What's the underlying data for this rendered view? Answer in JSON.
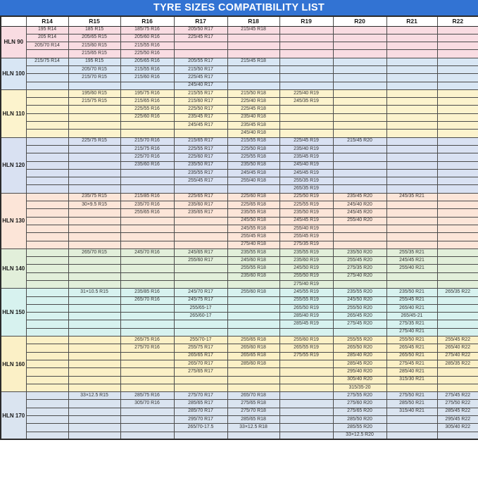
{
  "title": "TYRE SIZES COMPATIBILITY LIST",
  "colors": {
    "title_bg": "#3273d3",
    "title_text": "#ffffff",
    "header_bg": "#ffffff",
    "border": "#4a4a4a",
    "text": "#333333"
  },
  "columns": [
    "R14",
    "R15",
    "R16",
    "R17",
    "R18",
    "R19",
    "R20",
    "R21",
    "R22"
  ],
  "groups": [
    {
      "label": "HLN 90",
      "color": "#f9dce2",
      "rows": [
        [
          "195 R14",
          "185 R15",
          "185/75 R16",
          "205/50 R17",
          "215/45 R18",
          "",
          "",
          "",
          ""
        ],
        [
          "205 R14",
          "205/65 R15",
          "205/60 R16",
          "225/45 R17",
          "",
          "",
          "",
          "",
          ""
        ],
        [
          "205/70 R14",
          "215/60 R15",
          "215/55 R16",
          "",
          "",
          "",
          "",
          "",
          ""
        ],
        [
          "",
          "215/65 R15",
          "225/50 R16",
          "",
          "",
          "",
          "",
          "",
          ""
        ]
      ]
    },
    {
      "label": "HLN 100",
      "color": "#d8e6f4",
      "rows": [
        [
          "215/75 R14",
          "195 R15",
          "205/65 R16",
          "205/55 R17",
          "215/45 R18",
          "",
          "",
          "",
          ""
        ],
        [
          "",
          "205/70 R15",
          "215/55 R16",
          "215/50 R17",
          "",
          "",
          "",
          "",
          ""
        ],
        [
          "",
          "215/70 R15",
          "215/60 R16",
          "225/45 R17",
          "",
          "",
          "",
          "",
          ""
        ],
        [
          "",
          "",
          "",
          "245/40 R17",
          "",
          "",
          "",
          "",
          ""
        ]
      ]
    },
    {
      "label": "HLN 110",
      "color": "#fcf3cd",
      "rows": [
        [
          "",
          "195/60 R15",
          "195/75 R16",
          "215/55 R17",
          "215/50 R18",
          "225/40 R19",
          "",
          "",
          ""
        ],
        [
          "",
          "215/75 R15",
          "215/65 R16",
          "215/60 R17",
          "225/40 R18",
          "245/35 R19",
          "",
          "",
          ""
        ],
        [
          "",
          "",
          "225/55 R16",
          "225/50 R17",
          "225/45 R18",
          "",
          "",
          "",
          ""
        ],
        [
          "",
          "",
          "225/60 R16",
          "235/45 R17",
          "235/40 R18",
          "",
          "",
          "",
          ""
        ],
        [
          "",
          "",
          "",
          "245/45 R17",
          "235/45 R18",
          "",
          "",
          "",
          ""
        ],
        [
          "",
          "",
          "",
          "",
          "245/40 R18",
          "",
          "",
          "",
          ""
        ]
      ]
    },
    {
      "label": "HLN 120",
      "color": "#d9e1f2",
      "rows": [
        [
          "",
          "225/75 R15",
          "215/70 R16",
          "215/65 R17",
          "215/55 R18",
          "225/45 R19",
          "215/45 R20",
          "",
          ""
        ],
        [
          "",
          "",
          "215/75 R16",
          "225/55 R17",
          "225/50 R18",
          "235/40 R19",
          "",
          "",
          ""
        ],
        [
          "",
          "",
          "225/70 R16",
          "225/60 R17",
          "225/55 R18",
          "235/45 R19",
          "",
          "",
          ""
        ],
        [
          "",
          "",
          "235/60 R16",
          "235/50 R17",
          "235/50 R18",
          "245/40 R19",
          "",
          "",
          ""
        ],
        [
          "",
          "",
          "",
          "235/55 R17",
          "245/45 R18",
          "245/45 R19",
          "",
          "",
          ""
        ],
        [
          "",
          "",
          "",
          "255/45 R17",
          "255/40 R18",
          "255/35 R19",
          "",
          "",
          ""
        ],
        [
          "",
          "",
          "",
          "",
          "",
          "265/35 R19",
          "",
          "",
          ""
        ]
      ]
    },
    {
      "label": "HLN 130",
      "color": "#fce5d8",
      "rows": [
        [
          "",
          "235/75 R15",
          "215/85 R16",
          "225/65 R17",
          "225/60 R18",
          "225/50 R19",
          "235/45 R20",
          "245/35 R21",
          ""
        ],
        [
          "",
          "30×9.5 R15",
          "235/70 R16",
          "235/60 R17",
          "225/65 R18",
          "225/55 R19",
          "245/40 R20",
          "",
          ""
        ],
        [
          "",
          "",
          "255/65 R16",
          "235/65 R17",
          "235/55 R18",
          "235/50 R19",
          "245/45 R20",
          "",
          ""
        ],
        [
          "",
          "",
          "",
          "",
          "245/50 R18",
          "245/45 R19",
          "255/40 R20",
          "",
          ""
        ],
        [
          "",
          "",
          "",
          "",
          "245/55 R18",
          "255/40 R19",
          "",
          "",
          ""
        ],
        [
          "",
          "",
          "",
          "",
          "255/45 R18",
          "255/45 R19",
          "",
          "",
          ""
        ],
        [
          "",
          "",
          "",
          "",
          "275/40 R18",
          "275/35 R19",
          "",
          "",
          ""
        ]
      ]
    },
    {
      "label": "HLN 140",
      "color": "#e2efda",
      "rows": [
        [
          "",
          "265/70 R15",
          "245/70 R16",
          "245/65 R17",
          "235/55 R18",
          "235/55 R19",
          "235/50 R20",
          "255/35 R21",
          ""
        ],
        [
          "",
          "",
          "",
          "255/60 R17",
          "245/60 R18",
          "235/60 R19",
          "255/45 R20",
          "245/45 R21",
          ""
        ],
        [
          "",
          "",
          "",
          "",
          "255/55 R18",
          "245/50 R19",
          "275/35 R20",
          "255/40 R21",
          ""
        ],
        [
          "",
          "",
          "",
          "",
          "235/60 R18",
          "255/50 R19",
          "275/40 R20",
          "",
          ""
        ],
        [
          "",
          "",
          "",
          "",
          "",
          "275/40 R19",
          "",
          "",
          ""
        ]
      ]
    },
    {
      "label": "HLN 150",
      "color": "#d7f2ef",
      "rows": [
        [
          "",
          "31×10.5 R15",
          "235/85 R16",
          "245/70 R17",
          "255/60 R18",
          "245/55 R19",
          "235/55 R20",
          "235/50 R21",
          "265/35 R22"
        ],
        [
          "",
          "",
          "265/70 R16",
          "245/75 R17",
          "",
          "255/55 R19",
          "245/50 R20",
          "255/45 R21",
          ""
        ],
        [
          "",
          "",
          "",
          "255/65-17",
          "",
          "265/50 R19",
          "255/50 R20",
          "265/40 R21",
          ""
        ],
        [
          "",
          "",
          "",
          "265/60-17",
          "",
          "285/40 R19",
          "265/45 R20",
          "265/45-21",
          ""
        ],
        [
          "",
          "",
          "",
          "",
          "",
          "285/45 R19",
          "275/45 R20",
          "275/35 R21",
          ""
        ],
        [
          "",
          "",
          "",
          "",
          "",
          "",
          "",
          "275/40 R21",
          ""
        ]
      ]
    },
    {
      "label": "HLN 160",
      "color": "#fbf0c6",
      "rows": [
        [
          "",
          "",
          "265/75 R16",
          "255/70-17",
          "255/65 R18",
          "255/60 R19",
          "255/55 R20",
          "255/50 R21",
          "255/45 R22"
        ],
        [
          "",
          "",
          "275/70 R16",
          "255/75 R17",
          "265/60 R18",
          "265/55 R19",
          "265/50 R20",
          "265/45 R21",
          "265/40 R22"
        ],
        [
          "",
          "",
          "",
          "265/65 R17",
          "265/65 R18",
          "275/55 R19",
          "285/40 R20",
          "265/50 R21",
          "275/40 R22"
        ],
        [
          "",
          "",
          "",
          "265/70 R17",
          "285/60 R18",
          "",
          "285/45 R20",
          "275/45 R21",
          "285/35 R22"
        ],
        [
          "",
          "",
          "",
          "275/65 R17",
          "",
          "",
          "295/40 R20",
          "285/40 R21",
          ""
        ],
        [
          "",
          "",
          "",
          "",
          "",
          "",
          "305/40 R20",
          "315/30 R21",
          ""
        ],
        [
          "",
          "",
          "",
          "",
          "",
          "",
          "315/35-20",
          "",
          ""
        ]
      ]
    },
    {
      "label": "HLN 170",
      "color": "#dae4f0",
      "rows": [
        [
          "",
          "33×12.5 R15",
          "285/75 R16",
          "275/70 R17",
          "265/70 R18",
          "",
          "275/55 R20",
          "275/50 R21",
          "275/45 R22"
        ],
        [
          "",
          "",
          "305/70 R16",
          "285/65 R17",
          "275/65 R18",
          "",
          "275/60 R20",
          "285/50 R21",
          "275/50 R22"
        ],
        [
          "",
          "",
          "",
          "285/70 R17",
          "275/70 R18",
          "",
          "275/65 R20",
          "315/40 R21",
          "285/45 R22"
        ],
        [
          "",
          "",
          "",
          "295/70 R17",
          "285/65 R18",
          "",
          "285/50 R20",
          "",
          "295/45 R22"
        ],
        [
          "",
          "",
          "",
          "265/70-17.5",
          "33×12.5 R18",
          "",
          "285/55 R20",
          "",
          "305/40 R22"
        ],
        [
          "",
          "",
          "",
          "",
          "",
          "",
          "33×12.5 R20",
          "",
          ""
        ]
      ]
    }
  ]
}
